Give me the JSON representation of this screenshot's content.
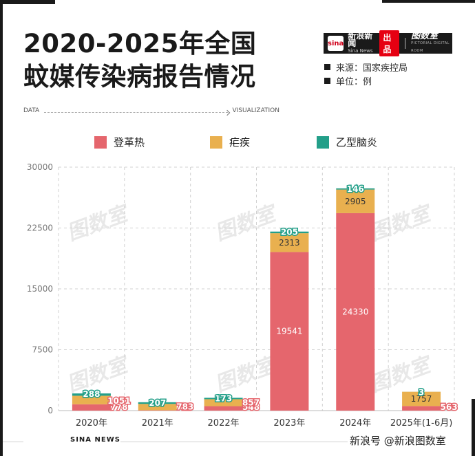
{
  "header": {
    "title_line1": "2020-2025年全国",
    "title_line2": "蚊媒传染病报告情况",
    "brand_sina_logo": "sina",
    "brand_sina_name": "新浪新闻",
    "brand_sina_en": "Sina News",
    "brand_produced": "出品",
    "brand_tushishi": "图数室",
    "brand_tushishi_en": "PICTORIAL DIGITAL ROOM",
    "source_text": "来源：国家疾控局",
    "unit_text": "单位：例",
    "data_label": "DATA",
    "viz_label": "VISUALIZATION"
  },
  "watermark_text": "图数室",
  "footer": {
    "left_text": "SINA NEWS",
    "right_text": "新浪号 @新浪图数室"
  },
  "colors": {
    "dengue": "#e5666d",
    "malaria": "#e9b04f",
    "je": "#239f89"
  },
  "chart_data": {
    "type": "bar",
    "stacked": true,
    "categories": [
      "2020年",
      "2021年",
      "2022年",
      "2023年",
      "2024年",
      "2025年(1-6月)"
    ],
    "series": [
      {
        "name": "登革热",
        "color": "#e5666d",
        "values": [
          778,
          41,
          548,
          19541,
          24330,
          563
        ]
      },
      {
        "name": "疟疾",
        "color": "#e9b04f",
        "values": [
          1051,
          783,
          857,
          2313,
          2905,
          1757
        ]
      },
      {
        "name": "乙型脑炎",
        "color": "#239f89",
        "values": [
          288,
          207,
          173,
          205,
          146,
          3
        ]
      }
    ],
    "yticks": [
      0,
      7500,
      15000,
      22500,
      30000
    ],
    "ylim": [
      0,
      30000
    ],
    "grid": true,
    "legend": "top-center"
  }
}
